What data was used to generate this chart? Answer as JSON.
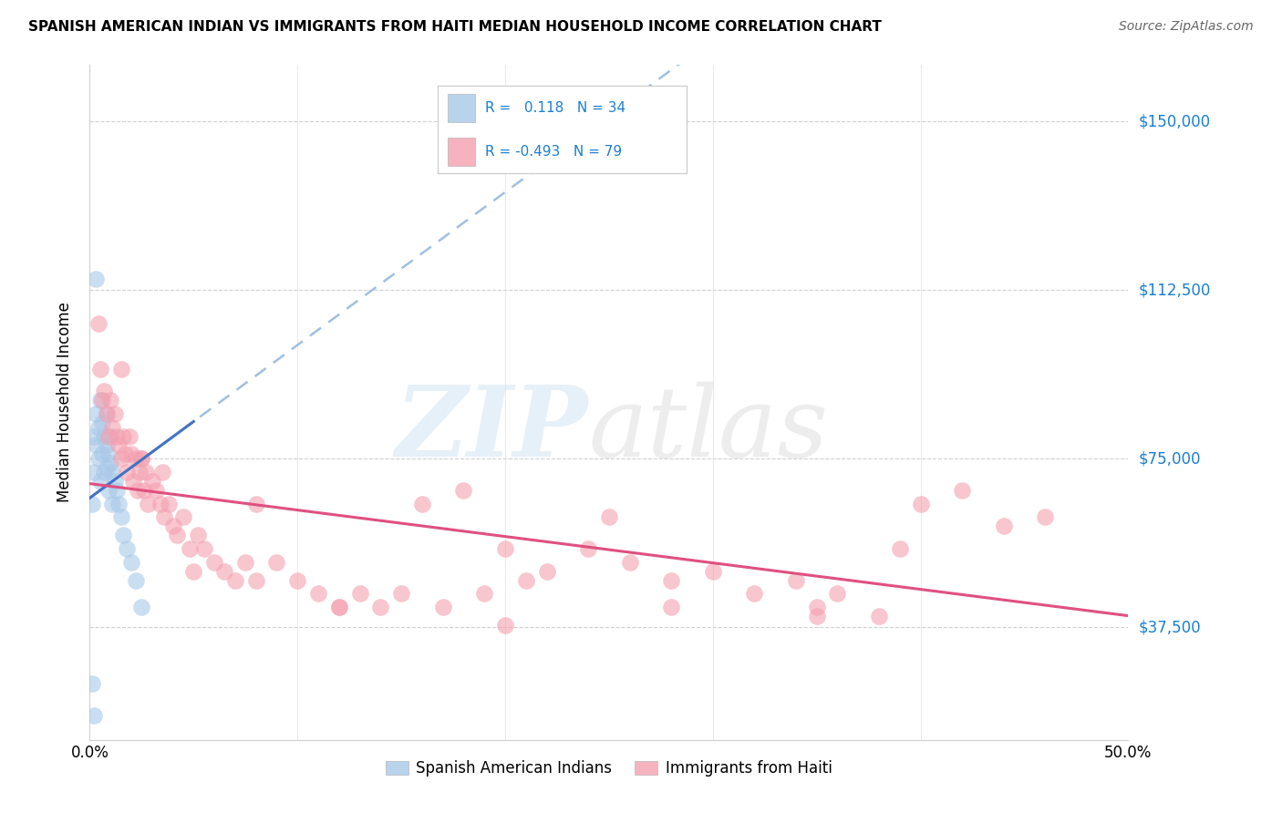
{
  "title": "SPANISH AMERICAN INDIAN VS IMMIGRANTS FROM HAITI MEDIAN HOUSEHOLD INCOME CORRELATION CHART",
  "source": "Source: ZipAtlas.com",
  "ylabel": "Median Household Income",
  "ytick_labels": [
    "$37,500",
    "$75,000",
    "$112,500",
    "$150,000"
  ],
  "ytick_values": [
    37500,
    75000,
    112500,
    150000
  ],
  "ymin": 12500,
  "ymax": 162500,
  "xmin": 0.0,
  "xmax": 0.5,
  "blue_color": "#a8c8e8",
  "pink_color": "#f4a0b0",
  "blue_line_color": "#4472c4",
  "pink_line_color": "#e05080",
  "dash_line_color": "#a0c0e0",
  "label1": "Spanish American Indians",
  "label2": "Immigrants from Haiti",
  "blue_R": 0.118,
  "blue_N": 34,
  "pink_R": -0.493,
  "pink_N": 79,
  "blue_x": [
    0.001,
    0.002,
    0.002,
    0.003,
    0.003,
    0.004,
    0.004,
    0.005,
    0.005,
    0.006,
    0.006,
    0.007,
    0.007,
    0.008,
    0.008,
    0.008,
    0.009,
    0.009,
    0.01,
    0.01,
    0.011,
    0.011,
    0.012,
    0.013,
    0.014,
    0.015,
    0.016,
    0.018,
    0.02,
    0.022,
    0.025,
    0.001,
    0.002,
    0.003
  ],
  "blue_y": [
    65000,
    72000,
    80000,
    85000,
    78000,
    82000,
    75000,
    88000,
    70000,
    83000,
    76000,
    80000,
    72000,
    85000,
    78000,
    73000,
    76000,
    68000,
    80000,
    74000,
    72000,
    65000,
    70000,
    68000,
    65000,
    62000,
    58000,
    55000,
    52000,
    48000,
    42000,
    25000,
    18000,
    115000
  ],
  "pink_x": [
    0.004,
    0.005,
    0.006,
    0.007,
    0.008,
    0.009,
    0.01,
    0.011,
    0.012,
    0.013,
    0.014,
    0.015,
    0.016,
    0.017,
    0.018,
    0.019,
    0.02,
    0.021,
    0.022,
    0.023,
    0.024,
    0.025,
    0.026,
    0.027,
    0.028,
    0.03,
    0.032,
    0.034,
    0.036,
    0.038,
    0.04,
    0.042,
    0.045,
    0.048,
    0.052,
    0.055,
    0.06,
    0.065,
    0.07,
    0.075,
    0.08,
    0.09,
    0.1,
    0.11,
    0.12,
    0.13,
    0.14,
    0.15,
    0.16,
    0.17,
    0.18,
    0.19,
    0.2,
    0.21,
    0.22,
    0.24,
    0.25,
    0.26,
    0.28,
    0.3,
    0.32,
    0.34,
    0.35,
    0.36,
    0.38,
    0.39,
    0.4,
    0.42,
    0.44,
    0.46,
    0.015,
    0.025,
    0.035,
    0.05,
    0.08,
    0.12,
    0.2,
    0.28,
    0.35
  ],
  "pink_y": [
    105000,
    95000,
    88000,
    90000,
    85000,
    80000,
    88000,
    82000,
    85000,
    80000,
    78000,
    75000,
    80000,
    76000,
    72000,
    80000,
    76000,
    70000,
    75000,
    68000,
    72000,
    75000,
    68000,
    72000,
    65000,
    70000,
    68000,
    65000,
    62000,
    65000,
    60000,
    58000,
    62000,
    55000,
    58000,
    55000,
    52000,
    50000,
    48000,
    52000,
    48000,
    52000,
    48000,
    45000,
    42000,
    45000,
    42000,
    45000,
    65000,
    42000,
    68000,
    45000,
    55000,
    48000,
    50000,
    55000,
    62000,
    52000,
    48000,
    50000,
    45000,
    48000,
    42000,
    45000,
    40000,
    55000,
    65000,
    68000,
    60000,
    62000,
    95000,
    75000,
    72000,
    50000,
    65000,
    42000,
    38000,
    42000,
    40000
  ]
}
